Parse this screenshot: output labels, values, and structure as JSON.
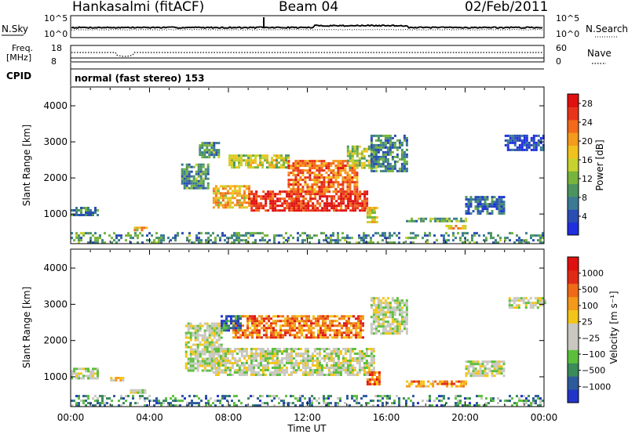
{
  "header": {
    "station": "Hankasalmi (fitACF)",
    "beam": "Beam 04",
    "date": "02/Feb/2011"
  },
  "sky_panel": {
    "left_label": "N.Sky",
    "right_label": "N.Search",
    "left_ticks": [
      "10^5",
      "10^0"
    ],
    "right_ticks": [
      "10^5",
      "10^0"
    ]
  },
  "freq_panel": {
    "left_label_1": "Freq.",
    "left_label_2": "[MHz]",
    "right_label": "Nave",
    "left_ticks": [
      "18",
      "8"
    ],
    "right_ticks": [
      "60",
      "0"
    ]
  },
  "cpid_panel": {
    "label": "CPID",
    "text": "normal (fast stereo) 153"
  },
  "time_axis": {
    "label": "Time UT",
    "ticks": [
      "00:00",
      "04:00",
      "08:00",
      "12:00",
      "16:00",
      "20:00",
      "00:00"
    ]
  },
  "chart_data": [
    {
      "type": "heatmap",
      "title": "",
      "xlabel": "Time UT",
      "ylabel": "Slant Range [km]",
      "x_range_hours": [
        0,
        24
      ],
      "ylim": [
        200,
        4500
      ],
      "y_ticks": [
        1000,
        2000,
        3000,
        4000
      ],
      "colorbar": {
        "label": "Power [dB]",
        "ticks": [
          4,
          8,
          12,
          16,
          20,
          24,
          28
        ],
        "range": [
          0,
          30
        ],
        "colors": [
          "#1f2fe0",
          "#2a4db4",
          "#3a7a95",
          "#4b9460",
          "#76b43c",
          "#c8d22e",
          "#f1c21e",
          "#f49a1c",
          "#f26a1a",
          "#e8341b",
          "#e01010"
        ]
      },
      "regions": [
        {
          "t": [
            0.0,
            1.4
          ],
          "r": [
            950,
            1200
          ],
          "level": 0.25
        },
        {
          "t": [
            3.2,
            3.8
          ],
          "r": [
            560,
            650
          ],
          "level": 0.6
        },
        {
          "t": [
            5.6,
            7.0
          ],
          "r": [
            1700,
            2400
          ],
          "level": 0.3
        },
        {
          "t": [
            6.5,
            7.5
          ],
          "r": [
            2600,
            3000
          ],
          "level": 0.3
        },
        {
          "t": [
            7.2,
            9.0
          ],
          "r": [
            1150,
            1800
          ],
          "level": 0.6
        },
        {
          "t": [
            8.0,
            11.0
          ],
          "r": [
            2300,
            2650
          ],
          "level": 0.5
        },
        {
          "t": [
            9.0,
            15.0
          ],
          "r": [
            1100,
            1650
          ],
          "level": 0.9
        },
        {
          "t": [
            11.0,
            14.5
          ],
          "r": [
            1600,
            2500
          ],
          "level": 0.75
        },
        {
          "t": [
            14.0,
            15.5
          ],
          "r": [
            2300,
            2900
          ],
          "level": 0.45
        },
        {
          "t": [
            15.2,
            17.0
          ],
          "r": [
            2200,
            3200
          ],
          "level": 0.25
        },
        {
          "t": [
            15.0,
            15.5
          ],
          "r": [
            800,
            1200
          ],
          "level": 0.55
        },
        {
          "t": [
            17.0,
            20.0
          ],
          "r": [
            800,
            900
          ],
          "level": 0.35
        },
        {
          "t": [
            19.0,
            20.0
          ],
          "r": [
            600,
            700
          ],
          "level": 0.6
        },
        {
          "t": [
            20.0,
            22.0
          ],
          "r": [
            1000,
            1500
          ],
          "level": 0.2
        },
        {
          "t": [
            22.0,
            24.0
          ],
          "r": [
            2800,
            3200
          ],
          "level": 0.1
        },
        {
          "t": [
            0.0,
            24.0
          ],
          "r": [
            200,
            500
          ],
          "level": 0.3
        }
      ]
    },
    {
      "type": "heatmap",
      "title": "",
      "xlabel": "Time UT",
      "ylabel": "Slant Range [km]",
      "x_range_hours": [
        0,
        24
      ],
      "ylim": [
        200,
        4500
      ],
      "y_ticks": [
        1000,
        2000,
        3000,
        4000
      ],
      "colorbar": {
        "label": "Velocity [m s⁻¹]",
        "ticks": [
          1000,
          500,
          100,
          25,
          -25,
          -100,
          -500,
          -1000
        ],
        "colors": [
          "#2135c8",
          "#2d5a9c",
          "#3a8a5a",
          "#5cbf3c",
          "#c8c8c0",
          "#c8c8c0",
          "#f3c51a",
          "#f39a1a",
          "#ef6a16",
          "#e02a16",
          "#e01010"
        ]
      },
      "regions": [
        {
          "t": [
            0.0,
            1.4
          ],
          "r": [
            950,
            1250
          ],
          "level": 0.45
        },
        {
          "t": [
            2.0,
            2.6
          ],
          "r": [
            880,
            1000
          ],
          "level": 0.6
        },
        {
          "t": [
            3.0,
            3.8
          ],
          "r": [
            560,
            660
          ],
          "level": 0.45
        },
        {
          "t": [
            5.8,
            7.6
          ],
          "r": [
            1200,
            2500
          ],
          "level": 0.45
        },
        {
          "t": [
            7.2,
            15.4
          ],
          "r": [
            1050,
            1800
          ],
          "level": 0.45
        },
        {
          "t": [
            8.2,
            14.8
          ],
          "r": [
            2100,
            2700
          ],
          "level": 0.75
        },
        {
          "t": [
            7.6,
            8.6
          ],
          "r": [
            2300,
            2700
          ],
          "level": 0.15
        },
        {
          "t": [
            15.0,
            15.6
          ],
          "r": [
            780,
            1150
          ],
          "level": 0.8
        },
        {
          "t": [
            15.2,
            17.0
          ],
          "r": [
            2200,
            3200
          ],
          "level": 0.45
        },
        {
          "t": [
            17.0,
            20.0
          ],
          "r": [
            750,
            900
          ],
          "level": 0.7
        },
        {
          "t": [
            20.0,
            22.0
          ],
          "r": [
            1000,
            1450
          ],
          "level": 0.45
        },
        {
          "t": [
            22.2,
            24.0
          ],
          "r": [
            2900,
            3200
          ],
          "level": 0.45
        },
        {
          "t": [
            0.0,
            24.0
          ],
          "r": [
            200,
            500
          ],
          "level": 0.25
        }
      ]
    }
  ]
}
